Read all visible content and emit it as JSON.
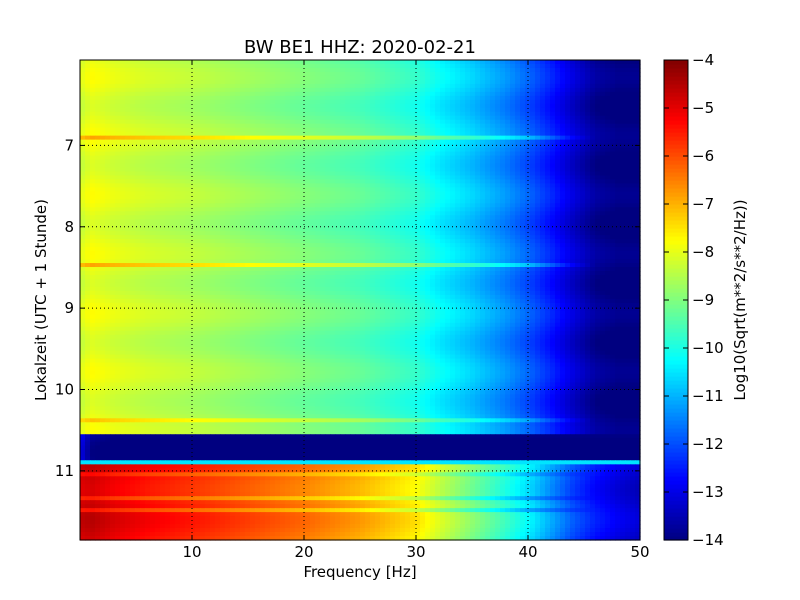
{
  "chart_data": {
    "type": "heatmap",
    "title": "BW BE1 HHZ: 2020-02-21",
    "xlabel": "Frequency [Hz]",
    "ylabel": "Lokalzeit (UTC + 1 Stunde)",
    "colorbar_label": "Log10(Sqrt(m**2/s**2/Hz))",
    "xlim": [
      0,
      50
    ],
    "ylim": [
      5.95,
      11.85
    ],
    "y_inverted": true,
    "x_ticks": [
      10,
      20,
      30,
      40,
      50
    ],
    "x_tick_labels": [
      "10",
      "20",
      "30",
      "40",
      "50"
    ],
    "y_ticks": [
      7,
      8,
      9,
      10,
      11
    ],
    "y_tick_labels": [
      "7",
      "8",
      "9",
      "10",
      "11"
    ],
    "clim": [
      -14,
      -4
    ],
    "colorbar_ticks": [
      -4,
      -5,
      -6,
      -7,
      -8,
      -9,
      -10,
      -11,
      -12,
      -13,
      -14
    ],
    "colorbar_tick_labels": [
      "−4",
      "−5",
      "−6",
      "−7",
      "−8",
      "−9",
      "−10",
      "−11",
      "−12",
      "−13",
      "−14"
    ],
    "colormap": "jet",
    "grid": true,
    "grid_style": "dotted",
    "frequency_profile_hz": [
      0,
      1,
      3,
      6,
      10,
      15,
      20,
      25,
      30,
      32,
      35,
      38,
      40,
      42,
      44,
      46,
      48,
      50
    ],
    "segments": [
      {
        "time_range": [
          5.95,
          10.55
        ],
        "values": [
          -8.2,
          -7.9,
          -8.1,
          -8.3,
          -8.5,
          -8.8,
          -9.1,
          -9.4,
          -9.9,
          -10.3,
          -10.8,
          -11.4,
          -11.9,
          -12.5,
          -13.2,
          -13.8,
          -14,
          -14
        ]
      },
      {
        "time_range": [
          10.55,
          10.87
        ],
        "values": [
          -12.8,
          -13.8,
          -14,
          -14,
          -14,
          -14,
          -14,
          -14,
          -14,
          -14,
          -14,
          -14,
          -14,
          -14,
          -14,
          -14,
          -14,
          -14
        ]
      },
      {
        "time_range": [
          10.87,
          10.92
        ],
        "values": [
          -10.5,
          -10.5,
          -10.5,
          -10.5,
          -10.5,
          -10.5,
          -10.5,
          -10.5,
          -10.5,
          -10.5,
          -10.5,
          -10.5,
          -10.5,
          -10.5,
          -10.5,
          -10.5,
          -10.5,
          -10.5
        ]
      },
      {
        "time_range": [
          10.92,
          11.85
        ],
        "values": [
          -4.8,
          -4.7,
          -5.0,
          -5.3,
          -5.6,
          -6.0,
          -6.4,
          -6.9,
          -7.6,
          -8.2,
          -9.0,
          -9.8,
          -10.4,
          -11.2,
          -12.0,
          -12.6,
          -13.0,
          -13.3
        ]
      }
    ],
    "band_events": [
      {
        "time": 6.92,
        "delta": 0.9
      },
      {
        "time": 8.48,
        "delta": 1.0
      },
      {
        "time": 10.38,
        "delta": 0.7
      },
      {
        "time": 11.05,
        "delta": -0.6
      },
      {
        "time": 11.35,
        "delta": -0.7
      },
      {
        "time": 11.5,
        "delta": -0.8
      }
    ]
  }
}
